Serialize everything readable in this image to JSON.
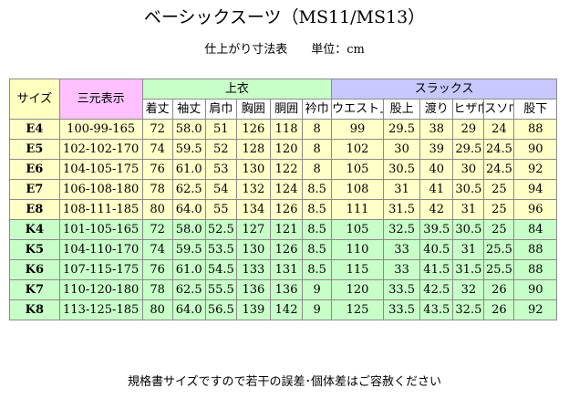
{
  "title": "ベーシックスーツ（MS11/MS13）",
  "subtitle": "仕上がり寸法表　　単位：cm",
  "footer": "規格書サイズですので若干の誤差･個体差はご容赦ください",
  "header": {
    "size": "サイズ",
    "sangen": "三元表示",
    "jacket_group": "上衣",
    "slacks_group": "スラックス",
    "cols": [
      "着丈",
      "袖丈",
      "肩巾",
      "胸囲",
      "胴囲",
      "衿巾",
      "ウエスト上り",
      "股上",
      "渡り",
      "ヒザ巾",
      "スソ巾",
      "股下"
    ]
  },
  "rows": [
    {
      "code": "E4",
      "sangen": "100-99-165",
      "vals": [
        "72",
        "58.0",
        "51",
        "126",
        "118",
        "8",
        "99",
        "29.5",
        "38",
        "29",
        "24",
        "88"
      ]
    },
    {
      "code": "E5",
      "sangen": "102-102-170",
      "vals": [
        "74",
        "59.5",
        "52",
        "128",
        "120",
        "8",
        "102",
        "30",
        "39",
        "29.5",
        "24.5",
        "90"
      ]
    },
    {
      "code": "E6",
      "sangen": "104-105-175",
      "vals": [
        "76",
        "61.0",
        "53",
        "130",
        "122",
        "8",
        "105",
        "30.5",
        "40",
        "30",
        "24.5",
        "92"
      ]
    },
    {
      "code": "E7",
      "sangen": "106-108-180",
      "vals": [
        "78",
        "62.5",
        "54",
        "132",
        "124",
        "8.5",
        "108",
        "31",
        "41",
        "30.5",
        "25",
        "94"
      ]
    },
    {
      "code": "E8",
      "sangen": "108-111-185",
      "vals": [
        "80",
        "64.0",
        "55",
        "134",
        "126",
        "8.5",
        "111",
        "31.5",
        "42",
        "31",
        "25",
        "96"
      ]
    },
    {
      "code": "K4",
      "sangen": "101-105-165",
      "vals": [
        "72",
        "58.0",
        "52.5",
        "127",
        "121",
        "8.5",
        "105",
        "32.5",
        "39.5",
        "30.5",
        "25",
        "84"
      ]
    },
    {
      "code": "K5",
      "sangen": "104-110-170",
      "vals": [
        "74",
        "59.5",
        "53.5",
        "130",
        "126",
        "8.5",
        "110",
        "33",
        "40.5",
        "31",
        "25.5",
        "88"
      ]
    },
    {
      "code": "K6",
      "sangen": "107-115-175",
      "vals": [
        "76",
        "61.0",
        "54.5",
        "133",
        "131",
        "8.5",
        "115",
        "33",
        "41.5",
        "31.5",
        "25.5",
        "88"
      ]
    },
    {
      "code": "K7",
      "sangen": "110-120-180",
      "vals": [
        "78",
        "62.5",
        "55.5",
        "136",
        "136",
        "9",
        "120",
        "33.5",
        "42.5",
        "32",
        "26",
        "90"
      ]
    },
    {
      "code": "K8",
      "sangen": "113-125-185",
      "vals": [
        "80",
        "64.0",
        "56.5",
        "139",
        "142",
        "9",
        "125",
        "33.5",
        "43.5",
        "32.5",
        "26",
        "92"
      ]
    }
  ],
  "colors": {
    "size_header": "#ffffc0",
    "sangen_header": "#ffc0ff",
    "jacket_header": "#c8ffc8",
    "slacks_header": "#c8c8ff",
    "e_rows": "#ffffc8",
    "k_rows": "#c8ffc8"
  }
}
